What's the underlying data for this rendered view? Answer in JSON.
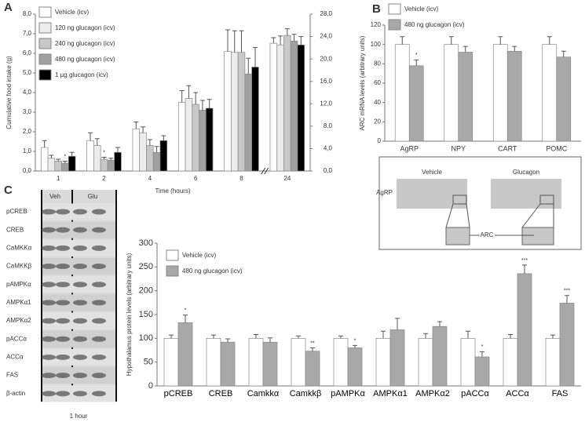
{
  "figure": {
    "panels": [
      "A",
      "B",
      "C"
    ],
    "blot": {
      "columns": [
        "Veh",
        "Glu"
      ],
      "rows": [
        "pCREB",
        "CREB",
        "CaMKKα",
        "CaMKKβ",
        "pAMPKα",
        "AMPKα1",
        "AMPKα2",
        "pACCα",
        "ACCα",
        "FAS",
        "β-actin"
      ],
      "caption": "1 hour"
    },
    "insitu": {
      "columns": [
        "Vehicle",
        "Glucagon"
      ],
      "probe": "AgRP",
      "region": "ARC"
    }
  },
  "chart_data": [
    {
      "type": "bar",
      "x_label": "Time (hours)",
      "y_label": "Cumulative food intake (g)",
      "categories": [
        "1",
        "2",
        "4",
        "6",
        "8",
        "24"
      ],
      "y2_categories": [
        "24"
      ],
      "series": [
        {
          "name": "Vehicle (icv)",
          "color": "#ffffff",
          "values": [
            1.2,
            1.55,
            2.15,
            3.5,
            6.1,
            22.8
          ],
          "errors": [
            0.35,
            0.4,
            0.35,
            0.6,
            1.1,
            1.0
          ],
          "significance": [
            null,
            null,
            null,
            null,
            null,
            null
          ]
        },
        {
          "name": "120 ng glucagon (icv)",
          "color": "#ececec",
          "values": [
            0.65,
            1.3,
            1.95,
            3.7,
            6.05,
            22.5
          ],
          "errors": [
            0.15,
            0.35,
            0.3,
            0.65,
            1.1,
            1.6
          ],
          "significance": [
            null,
            null,
            null,
            null,
            null,
            null
          ]
        },
        {
          "name": "240 ng glucagon (icv)",
          "color": "#c8c8c8",
          "values": [
            0.5,
            0.6,
            1.3,
            3.4,
            6.05,
            24.2
          ],
          "errors": [
            0.1,
            0.1,
            0.3,
            0.6,
            1.1,
            1.2
          ],
          "significance": [
            null,
            "*",
            null,
            null,
            null,
            null
          ]
        },
        {
          "name": "480 ng glucagon (icv)",
          "color": "#a0a0a0",
          "values": [
            0.4,
            0.55,
            0.95,
            3.1,
            4.95,
            23.2
          ],
          "errors": [
            0.1,
            0.1,
            0.3,
            0.5,
            0.8,
            1.2
          ],
          "significance": [
            "*",
            null,
            null,
            null,
            null,
            null
          ]
        },
        {
          "name": "1 µg glucagon (icv)",
          "color": "#000000",
          "values": [
            0.75,
            0.95,
            1.55,
            3.2,
            5.3,
            22.5
          ],
          "errors": [
            0.2,
            0.25,
            0.25,
            0.45,
            1.0,
            1.5
          ],
          "significance": [
            null,
            null,
            null,
            null,
            null,
            null
          ]
        }
      ],
      "ylim": [
        0,
        8
      ],
      "yticks": [
        {
          "value": 0,
          "label": "0,0"
        },
        {
          "value": 1,
          "label": "1,0"
        },
        {
          "value": 2,
          "label": "2,0"
        },
        {
          "value": 3,
          "label": "3,0"
        },
        {
          "value": 4,
          "label": "4,0"
        },
        {
          "value": 5,
          "label": "5,0"
        },
        {
          "value": 6,
          "label": "6,0"
        },
        {
          "value": 7,
          "label": "7,0"
        },
        {
          "value": 8,
          "label": "8,0"
        }
      ],
      "y2lim": [
        0,
        28
      ],
      "y2ticks": [
        {
          "value": 0,
          "label": "0,0"
        },
        {
          "value": 4,
          "label": "4,0"
        },
        {
          "value": 8,
          "label": "8,0"
        },
        {
          "value": 12,
          "label": "12,0"
        },
        {
          "value": 16,
          "label": "16,0"
        },
        {
          "value": 20,
          "label": "20,0"
        },
        {
          "value": 24,
          "label": "24,0"
        },
        {
          "value": 28,
          "label": "28,0"
        }
      ]
    },
    {
      "type": "bar",
      "y_label": "ARC mRNA levels (arbitrary units)",
      "categories": [
        "AgRP",
        "NPY",
        "CART",
        "POMC"
      ],
      "series": [
        {
          "name": "Vehicle (icv)",
          "color": "#ffffff",
          "values": [
            100,
            100,
            100,
            100
          ],
          "errors": [
            8,
            8,
            8,
            8
          ],
          "significance": [
            null,
            null,
            null,
            null
          ]
        },
        {
          "name": "480 ng glucagon (icv)",
          "color": "#a8a8a8",
          "values": [
            78,
            92,
            93,
            87
          ],
          "errors": [
            6,
            6,
            5,
            6
          ],
          "significance": [
            "*",
            null,
            null,
            null
          ]
        }
      ],
      "ylim": [
        0,
        120
      ],
      "yticks": [
        0,
        20,
        40,
        60,
        80,
        100,
        120
      ]
    },
    {
      "type": "bar",
      "y_label": "Hypothalamus protein levels (arbitrary units)",
      "categories": [
        "pCREB",
        "CREB",
        "Camkkα",
        "Camkkβ",
        "pAMPKα",
        "AMPKα1",
        "AMPKα2",
        "pACCα",
        "ACCα",
        "FAS"
      ],
      "series": [
        {
          "name": "Vehicle (icv)",
          "color": "#ffffff",
          "values": [
            100,
            100,
            100,
            100,
            100,
            100,
            100,
            100,
            100,
            100
          ],
          "errors": [
            7,
            7,
            8,
            5,
            5,
            15,
            10,
            15,
            8,
            7
          ],
          "significance": [
            null,
            null,
            null,
            null,
            null,
            null,
            null,
            null,
            null,
            null
          ]
        },
        {
          "name": "480 ng glucagon (icv)",
          "color": "#a8a8a8",
          "values": [
            133,
            92,
            92,
            73,
            80,
            118,
            125,
            61,
            236,
            174
          ],
          "errors": [
            16,
            7,
            9,
            7,
            5,
            24,
            10,
            11,
            18,
            16
          ],
          "significance": [
            "*",
            null,
            null,
            "**",
            "*",
            null,
            null,
            "*",
            "***",
            "***"
          ]
        }
      ],
      "ylim": [
        0,
        300
      ],
      "yticks": [
        0,
        50,
        100,
        150,
        200,
        250,
        300
      ]
    }
  ]
}
